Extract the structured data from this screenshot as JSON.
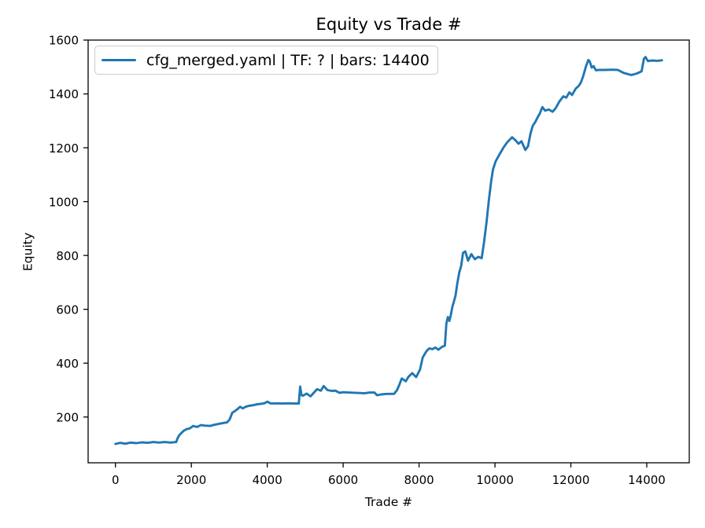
{
  "colors": {
    "background": "#ffffff",
    "line": "#1f77b4",
    "spine": "#000000",
    "text": "#000000",
    "legend_border": "#cccccc"
  },
  "chart_data": {
    "type": "line",
    "title": "Equity vs Trade #",
    "xlabel": "Trade #",
    "ylabel": "Equity",
    "xlim": [
      -720,
      15120
    ],
    "ylim": [
      30,
      1600
    ],
    "xticks": [
      0,
      2000,
      4000,
      6000,
      8000,
      10000,
      12000,
      14000
    ],
    "yticks": [
      200,
      400,
      600,
      800,
      1000,
      1200,
      1400,
      1600
    ],
    "grid": false,
    "legend": {
      "position": "upper left",
      "entries": [
        {
          "label": "cfg_merged.yaml | TF: ? | bars: 14400",
          "color": "#1f77b4"
        }
      ]
    },
    "series": [
      {
        "name": "cfg_merged.yaml | TF: ? | bars: 14400",
        "color": "#1f77b4",
        "points": [
          [
            0,
            100
          ],
          [
            120,
            104
          ],
          [
            260,
            101
          ],
          [
            400,
            105
          ],
          [
            550,
            103
          ],
          [
            700,
            106
          ],
          [
            850,
            104
          ],
          [
            1000,
            107
          ],
          [
            1150,
            105
          ],
          [
            1300,
            107
          ],
          [
            1450,
            105
          ],
          [
            1600,
            107
          ],
          [
            1640,
            122
          ],
          [
            1690,
            134
          ],
          [
            1740,
            141
          ],
          [
            1800,
            149
          ],
          [
            1870,
            155
          ],
          [
            1944,
            157
          ],
          [
            2000,
            162
          ],
          [
            2048,
            167
          ],
          [
            2151,
            163
          ],
          [
            2254,
            170
          ],
          [
            2350,
            168
          ],
          [
            2495,
            167
          ],
          [
            2600,
            171
          ],
          [
            2701,
            174
          ],
          [
            2850,
            178
          ],
          [
            2941,
            180
          ],
          [
            3010,
            191
          ],
          [
            3078,
            216
          ],
          [
            3147,
            222
          ],
          [
            3220,
            230
          ],
          [
            3285,
            238
          ],
          [
            3353,
            232
          ],
          [
            3430,
            238
          ],
          [
            3526,
            242
          ],
          [
            3630,
            244
          ],
          [
            3732,
            247
          ],
          [
            3830,
            249
          ],
          [
            3920,
            251
          ],
          [
            4007,
            257
          ],
          [
            4060,
            252
          ],
          [
            4110,
            250
          ],
          [
            4250,
            251
          ],
          [
            4400,
            250
          ],
          [
            4550,
            251
          ],
          [
            4700,
            250
          ],
          [
            4830,
            250
          ],
          [
            4867,
            313
          ],
          [
            4900,
            282
          ],
          [
            4935,
            279
          ],
          [
            5038,
            287
          ],
          [
            5141,
            277
          ],
          [
            5230,
            291
          ],
          [
            5312,
            303
          ],
          [
            5415,
            298
          ],
          [
            5485,
            315
          ],
          [
            5588,
            300
          ],
          [
            5700,
            297
          ],
          [
            5794,
            298
          ],
          [
            5900,
            290
          ],
          [
            6000,
            292
          ],
          [
            6150,
            291
          ],
          [
            6300,
            290
          ],
          [
            6450,
            289
          ],
          [
            6549,
            288
          ],
          [
            6700,
            291
          ],
          [
            6825,
            291
          ],
          [
            6893,
            281
          ],
          [
            7000,
            284
          ],
          [
            7150,
            286
          ],
          [
            7341,
            286
          ],
          [
            7420,
            300
          ],
          [
            7477,
            319
          ],
          [
            7545,
            343
          ],
          [
            7650,
            333
          ],
          [
            7718,
            349
          ],
          [
            7820,
            363
          ],
          [
            7923,
            348
          ],
          [
            8027,
            377
          ],
          [
            8095,
            421
          ],
          [
            8198,
            445
          ],
          [
            8270,
            455
          ],
          [
            8350,
            452
          ],
          [
            8430,
            458
          ],
          [
            8510,
            450
          ],
          [
            8600,
            460
          ],
          [
            8680,
            465
          ],
          [
            8720,
            547
          ],
          [
            8760,
            571
          ],
          [
            8800,
            557
          ],
          [
            8840,
            581
          ],
          [
            8880,
            610
          ],
          [
            8920,
            630
          ],
          [
            8960,
            650
          ],
          [
            9010,
            698
          ],
          [
            9060,
            737
          ],
          [
            9110,
            761
          ],
          [
            9160,
            810
          ],
          [
            9220,
            815
          ],
          [
            9290,
            781
          ],
          [
            9380,
            805
          ],
          [
            9470,
            786
          ],
          [
            9560,
            795
          ],
          [
            9650,
            790
          ],
          [
            9712,
            850
          ],
          [
            9780,
            925
          ],
          [
            9840,
            1005
          ],
          [
            9900,
            1075
          ],
          [
            9950,
            1120
          ],
          [
            10020,
            1150
          ],
          [
            10120,
            1175
          ],
          [
            10220,
            1200
          ],
          [
            10320,
            1220
          ],
          [
            10450,
            1239
          ],
          [
            10540,
            1228
          ],
          [
            10620,
            1215
          ],
          [
            10700,
            1224
          ],
          [
            10800,
            1192
          ],
          [
            10870,
            1205
          ],
          [
            10940,
            1255
          ],
          [
            11000,
            1283
          ],
          [
            11060,
            1295
          ],
          [
            11120,
            1312
          ],
          [
            11180,
            1327
          ],
          [
            11250,
            1351
          ],
          [
            11320,
            1338
          ],
          [
            11420,
            1342
          ],
          [
            11520,
            1334
          ],
          [
            11600,
            1347
          ],
          [
            11700,
            1372
          ],
          [
            11800,
            1391
          ],
          [
            11880,
            1386
          ],
          [
            11960,
            1406
          ],
          [
            12030,
            1396
          ],
          [
            12130,
            1420
          ],
          [
            12210,
            1430
          ],
          [
            12270,
            1444
          ],
          [
            12330,
            1468
          ],
          [
            12400,
            1503
          ],
          [
            12460,
            1526
          ],
          [
            12500,
            1520
          ],
          [
            12550,
            1498
          ],
          [
            12600,
            1503
          ],
          [
            12660,
            1488
          ],
          [
            12740,
            1489
          ],
          [
            12900,
            1489
          ],
          [
            13100,
            1490
          ],
          [
            13240,
            1489
          ],
          [
            13390,
            1478
          ],
          [
            13596,
            1470
          ],
          [
            13740,
            1476
          ],
          [
            13864,
            1484
          ],
          [
            13926,
            1531
          ],
          [
            13967,
            1537
          ],
          [
            14029,
            1522
          ],
          [
            14150,
            1524
          ],
          [
            14280,
            1523
          ],
          [
            14400,
            1525
          ]
        ]
      }
    ]
  }
}
